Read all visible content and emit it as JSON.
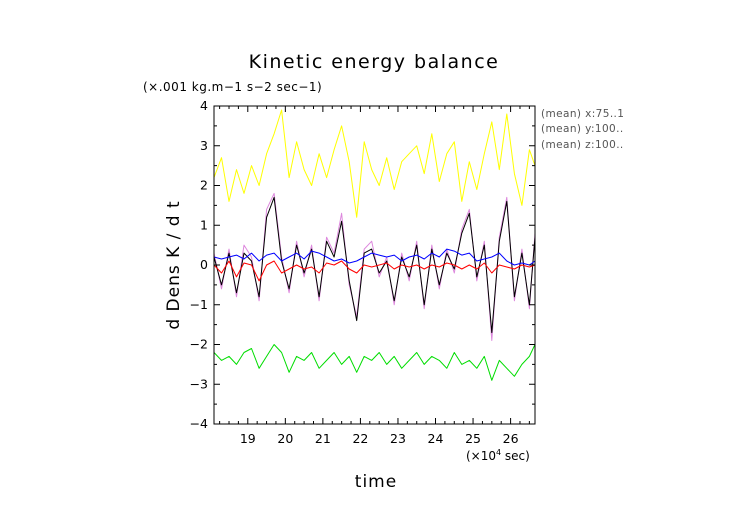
{
  "chart_data": {
    "type": "line",
    "title": "Kinetic energy balance",
    "subtitle": "(×.001 kg.m−1 s−2 sec−1)",
    "xlabel": "time",
    "ylabel": "d Dens K / d t",
    "x_unit_prefix": "(×10",
    "x_unit_exp": "4",
    "x_unit_suffix": " sec)",
    "xlim": [
      18.1,
      26.65
    ],
    "ylim": [
      -4,
      4
    ],
    "xticks": [
      19,
      20,
      21,
      22,
      23,
      24,
      25,
      26
    ],
    "yticks": [
      -4,
      -3,
      -2,
      -1,
      0,
      1,
      2,
      3,
      4
    ],
    "xtick_labels": [
      "19",
      "20",
      "21",
      "22",
      "23",
      "24",
      "25",
      "26"
    ],
    "ytick_labels": [
      "−4",
      "−3",
      "−2",
      "−1",
      "0",
      "1",
      "2",
      "3",
      "4"
    ],
    "grid": false,
    "legend_position": "top-right",
    "legend": [
      "(mean) x:75..1",
      "(mean) y:100..",
      "(mean) z:100.."
    ],
    "x": [
      18.1,
      18.3,
      18.5,
      18.7,
      18.9,
      19.1,
      19.3,
      19.5,
      19.7,
      19.9,
      20.1,
      20.3,
      20.5,
      20.7,
      20.9,
      21.1,
      21.3,
      21.5,
      21.7,
      21.9,
      22.1,
      22.3,
      22.5,
      22.7,
      22.9,
      23.1,
      23.3,
      23.5,
      23.7,
      23.9,
      24.1,
      24.3,
      24.5,
      24.7,
      24.9,
      25.1,
      25.3,
      25.5,
      25.7,
      25.9,
      26.1,
      26.3,
      26.5,
      26.65
    ],
    "series": [
      {
        "color": "#ffff00",
        "values": [
          2.2,
          2.7,
          1.6,
          2.4,
          1.8,
          2.5,
          2.0,
          2.8,
          3.3,
          3.9,
          2.2,
          3.1,
          2.4,
          2.0,
          2.8,
          2.2,
          2.9,
          3.5,
          2.6,
          1.2,
          3.1,
          2.4,
          2.0,
          2.7,
          1.9,
          2.6,
          2.8,
          3.0,
          2.3,
          3.3,
          2.1,
          2.8,
          3.1,
          1.6,
          2.6,
          1.9,
          2.8,
          3.6,
          2.4,
          3.8,
          2.3,
          1.5,
          2.9,
          2.5
        ]
      },
      {
        "color": "#dd88dd",
        "values": [
          0.3,
          -0.6,
          0.4,
          -0.8,
          0.5,
          0.2,
          -0.9,
          1.4,
          1.8,
          0.2,
          -0.7,
          0.6,
          -0.3,
          0.5,
          -0.9,
          0.7,
          0.3,
          1.3,
          -0.5,
          -1.3,
          0.4,
          0.6,
          -0.3,
          0.2,
          -1.0,
          0.3,
          -0.4,
          0.6,
          -1.1,
          0.5,
          -0.6,
          0.4,
          -0.2,
          0.9,
          1.4,
          -0.4,
          0.6,
          -1.9,
          0.7,
          1.7,
          -0.9,
          0.4,
          -1.1,
          0.8
        ]
      },
      {
        "color": "#000000",
        "values": [
          0.2,
          -0.5,
          0.3,
          -0.7,
          0.3,
          0.1,
          -0.8,
          1.2,
          1.7,
          0.1,
          -0.6,
          0.5,
          -0.2,
          0.4,
          -0.8,
          0.6,
          0.2,
          1.1,
          -0.4,
          -1.4,
          0.3,
          0.4,
          -0.2,
          0.1,
          -0.9,
          0.2,
          -0.3,
          0.5,
          -1.0,
          0.4,
          -0.5,
          0.3,
          -0.1,
          0.8,
          1.3,
          -0.3,
          0.5,
          -1.7,
          0.6,
          1.6,
          -0.8,
          0.3,
          -1.0,
          0.7
        ]
      },
      {
        "color": "#0000ff",
        "values": [
          0.2,
          0.15,
          0.2,
          0.25,
          0.15,
          0.3,
          0.1,
          0.25,
          0.3,
          0.1,
          0.2,
          0.3,
          0.15,
          0.35,
          0.3,
          0.2,
          0.1,
          0.15,
          0.05,
          0.1,
          0.2,
          0.3,
          0.25,
          0.2,
          0.25,
          0.1,
          0.2,
          0.25,
          0.15,
          0.3,
          0.2,
          0.4,
          0.35,
          0.25,
          0.3,
          0.1,
          0.15,
          0.2,
          0.3,
          0.1,
          0.0,
          0.05,
          0.0,
          0.1
        ]
      },
      {
        "color": "#ff0000",
        "values": [
          0.0,
          -0.2,
          0.1,
          -0.3,
          0.05,
          0.0,
          -0.4,
          0.0,
          0.1,
          -0.2,
          -0.1,
          0.0,
          -0.1,
          -0.05,
          -0.2,
          0.05,
          0.0,
          0.1,
          -0.1,
          -0.2,
          0.0,
          -0.05,
          0.0,
          0.05,
          -0.1,
          0.0,
          -0.05,
          0.0,
          -0.1,
          0.0,
          -0.05,
          0.05,
          0.0,
          -0.1,
          0.0,
          -0.1,
          0.05,
          -0.2,
          0.0,
          -0.05,
          -0.1,
          0.0,
          -0.05,
          0.0
        ]
      },
      {
        "color": "#00dd00",
        "values": [
          -2.2,
          -2.4,
          -2.3,
          -2.5,
          -2.2,
          -2.1,
          -2.6,
          -2.3,
          -2.0,
          -2.2,
          -2.7,
          -2.3,
          -2.4,
          -2.2,
          -2.6,
          -2.4,
          -2.2,
          -2.5,
          -2.3,
          -2.7,
          -2.3,
          -2.4,
          -2.2,
          -2.5,
          -2.3,
          -2.6,
          -2.4,
          -2.2,
          -2.5,
          -2.3,
          -2.4,
          -2.6,
          -2.2,
          -2.5,
          -2.4,
          -2.6,
          -2.3,
          -2.9,
          -2.4,
          -2.6,
          -2.8,
          -2.5,
          -2.3,
          -2.0
        ]
      }
    ]
  }
}
